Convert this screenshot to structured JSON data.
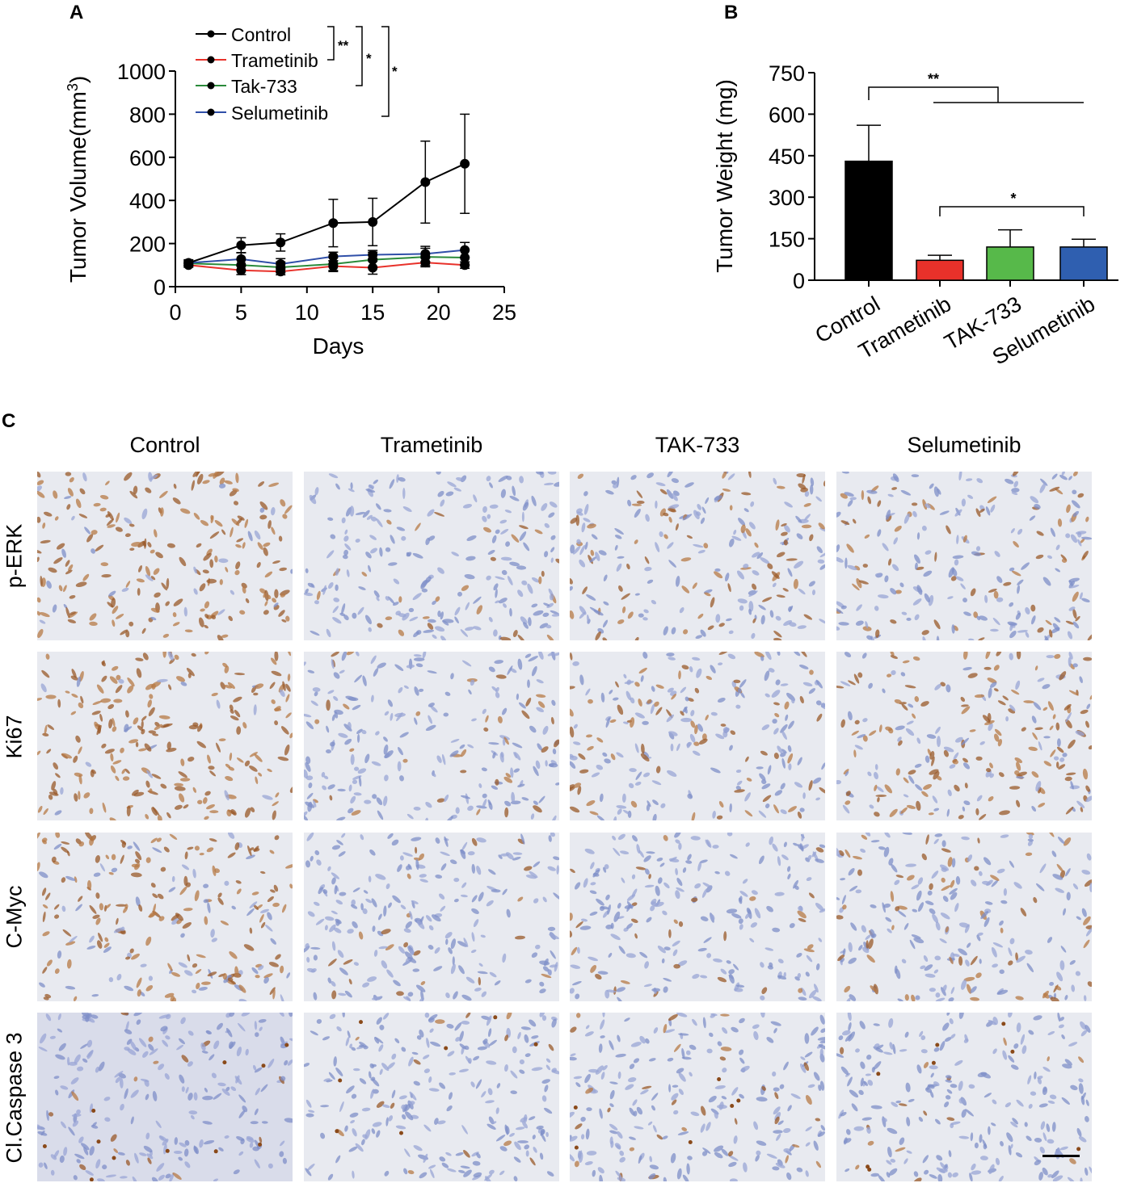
{
  "panels": {
    "a": "A",
    "b": "B",
    "c": "C"
  },
  "chart_data": [
    {
      "type": "line",
      "xlabel": "Days",
      "ylabel": "Tumor Volume(mm",
      "ylabel_sup": "3",
      "ylabel_close": ")",
      "xlim": [
        0,
        25
      ],
      "ylim": [
        0,
        1000
      ],
      "xticks": [
        0,
        5,
        10,
        15,
        20,
        25
      ],
      "yticks": [
        0,
        200,
        400,
        600,
        800,
        1000
      ],
      "legend_position": "top-left",
      "x": [
        1,
        5,
        8,
        12,
        15,
        19,
        22
      ],
      "series": [
        {
          "name": "Control",
          "color": "#000000",
          "values": [
            110,
            192,
            205,
            295,
            300,
            485,
            570
          ],
          "error": [
            15,
            35,
            40,
            110,
            110,
            190,
            230
          ]
        },
        {
          "name": "Trametinib",
          "color": "#e8312a",
          "values": [
            100,
            76,
            70,
            95,
            88,
            112,
            100
          ],
          "error": [
            10,
            20,
            15,
            25,
            30,
            20,
            15
          ]
        },
        {
          "name": "Tak-733",
          "color": "#2a8a3a",
          "values": [
            108,
            100,
            90,
            105,
            125,
            138,
            135
          ],
          "error": [
            10,
            25,
            25,
            30,
            35,
            40,
            35
          ]
        },
        {
          "name": "Selumetinib",
          "color": "#2f4fa8",
          "values": [
            110,
            128,
            105,
            140,
            148,
            152,
            170
          ],
          "error": [
            10,
            30,
            25,
            20,
            20,
            35,
            35
          ]
        }
      ],
      "annotations": [
        "**",
        "*",
        "*"
      ]
    },
    {
      "type": "bar",
      "ylabel": "Tumor Weight (mg)",
      "ylim": [
        0,
        750
      ],
      "yticks": [
        0,
        150,
        300,
        450,
        600,
        750
      ],
      "categories": [
        "Control",
        "Trametinib",
        "TAK-733",
        "Selumetinib"
      ],
      "values": [
        430,
        72,
        120,
        120
      ],
      "error": [
        130,
        18,
        62,
        28
      ],
      "colors": [
        "#000000",
        "#e8312a",
        "#57b94a",
        "#2f5fb0"
      ],
      "annotations": [
        "**",
        "*"
      ]
    }
  ],
  "ihc": {
    "columns": [
      "Control",
      "Trametinib",
      "TAK-733",
      "Selumetinib"
    ],
    "rows": [
      "p-ERK",
      "Ki67",
      "C-Myc",
      "Cl.Caspase 3"
    ],
    "stain_intensity": [
      [
        0.85,
        0.1,
        0.35,
        0.3
      ],
      [
        0.9,
        0.15,
        0.35,
        0.55
      ],
      [
        0.8,
        0.1,
        0.15,
        0.3
      ],
      [
        0.05,
        0.05,
        0.1,
        0.08
      ]
    ]
  }
}
